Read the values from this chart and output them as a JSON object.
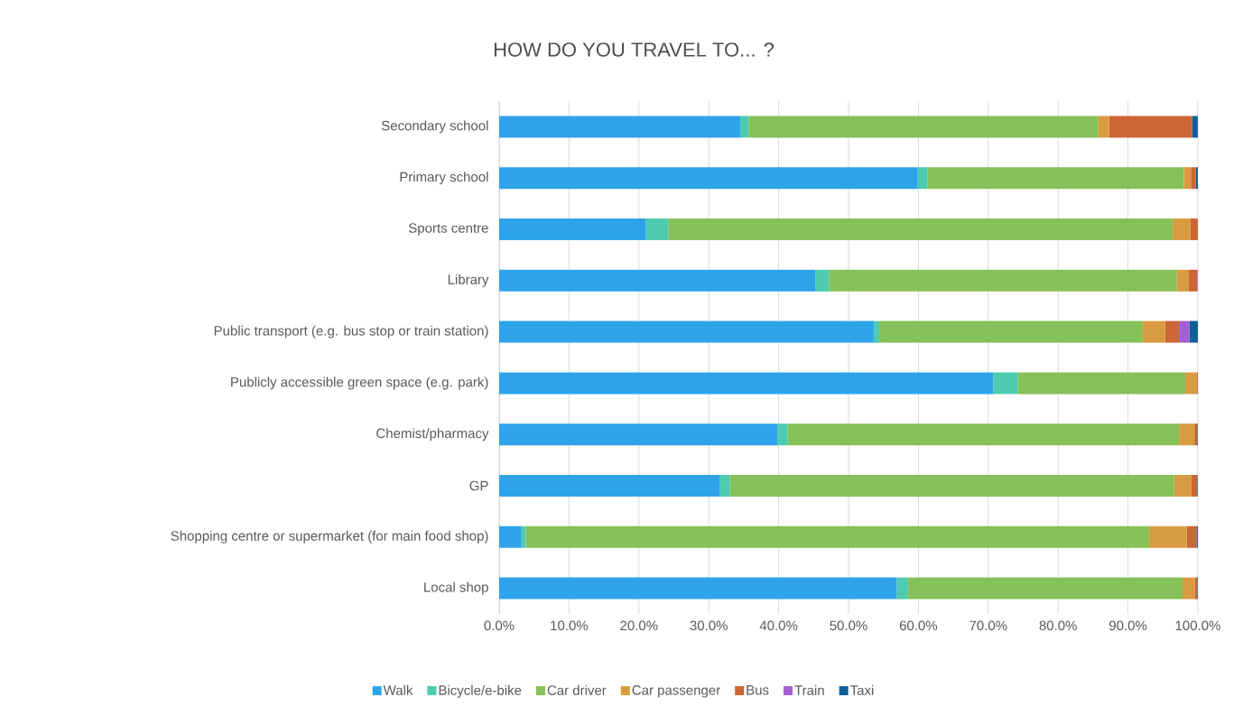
{
  "chart_data": {
    "type": "bar",
    "orientation": "horizontal",
    "stacked": true,
    "title": "HOW DO YOU TRAVEL TO... ?",
    "categories": [
      "Secondary school",
      "Primary school",
      "Sports centre",
      "Library",
      "Public transport (e.g. bus stop or train station)",
      "Publicly accessible green space (e.g. park)",
      "Chemist/pharmacy",
      "GP",
      "Shopping centre or supermarket (for main food shop)",
      "Local shop"
    ],
    "series": [
      {
        "name": "Walk",
        "color": "#2ea3ea",
        "values": [
          34.5,
          59.9,
          21.0,
          45.3,
          53.6,
          70.7,
          39.8,
          31.6,
          3.2,
          56.9
        ]
      },
      {
        "name": "Bicycle/e-bike",
        "color": "#4ccbb0",
        "values": [
          1.2,
          1.4,
          3.2,
          1.9,
          0.8,
          3.5,
          1.5,
          1.4,
          0.6,
          1.6
        ]
      },
      {
        "name": "Car driver",
        "color": "#86c058",
        "values": [
          50.0,
          36.7,
          72.2,
          49.8,
          37.7,
          24.0,
          56.0,
          63.6,
          89.2,
          39.3
        ]
      },
      {
        "name": "Car passenger",
        "color": "#d99b40",
        "values": [
          1.6,
          1.0,
          2.5,
          1.7,
          3.2,
          1.6,
          2.2,
          2.5,
          5.4,
          1.8
        ]
      },
      {
        "name": "Bus",
        "color": "#cc6633",
        "values": [
          11.9,
          0.7,
          1.1,
          1.2,
          2.0,
          0.2,
          0.4,
          0.8,
          1.4,
          0.3
        ]
      },
      {
        "name": "Train",
        "color": "#a35fd3",
        "values": [
          0.0,
          0.0,
          0.0,
          0.1,
          1.5,
          0.0,
          0.0,
          0.0,
          0.0,
          0.0
        ]
      },
      {
        "name": "Taxi",
        "color": "#0f6099",
        "values": [
          0.8,
          0.3,
          0.0,
          0.0,
          1.2,
          0.0,
          0.1,
          0.1,
          0.2,
          0.1
        ]
      }
    ],
    "xlim": [
      0,
      100
    ],
    "xticks": [
      {
        "value": 0,
        "label": "0.0%"
      },
      {
        "value": 10,
        "label": "10.0%"
      },
      {
        "value": 20,
        "label": "20.0%"
      },
      {
        "value": 30,
        "label": "30.0%"
      },
      {
        "value": 40,
        "label": "40.0%"
      },
      {
        "value": 50,
        "label": "50.0%"
      },
      {
        "value": 60,
        "label": "60.0%"
      },
      {
        "value": 70,
        "label": "70.0%"
      },
      {
        "value": 80,
        "label": "80.0%"
      },
      {
        "value": 90,
        "label": "90.0%"
      },
      {
        "value": 100,
        "label": "100.0%"
      }
    ],
    "grid": "x",
    "legend": "bottom"
  }
}
